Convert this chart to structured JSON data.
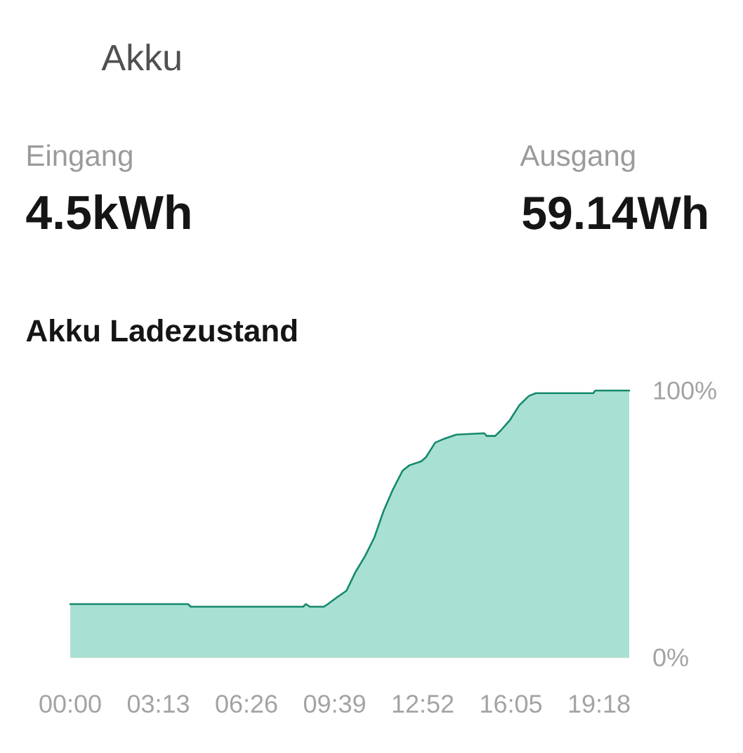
{
  "chart_data": {
    "type": "area",
    "title": "Akku Ladezustand",
    "annotations": [
      "Akku",
      "Eingang",
      "4.5kWh",
      "Ausgang",
      "59.14Wh"
    ],
    "x": [
      0,
      4.3,
      4.4,
      8.5,
      8.6,
      8.75,
      9.25,
      9.4,
      9.73,
      10.08,
      10.41,
      10.76,
      11.1,
      11.44,
      11.78,
      12.13,
      12.38,
      12.81,
      12.98,
      13.32,
      13.66,
      14.09,
      15.11,
      15.2,
      15.51,
      15.71,
      16.05,
      16.39,
      16.74,
      16.99,
      19.09,
      19.16,
      20.4
    ],
    "values": [
      20,
      20,
      19,
      19,
      20,
      19,
      19,
      20,
      22.5,
      25,
      32,
      38,
      45,
      55,
      63,
      70,
      72,
      73.5,
      75,
      80.5,
      82,
      83.5,
      84,
      83,
      83,
      85,
      89,
      94.5,
      98,
      99,
      99,
      100,
      100
    ],
    "color": "#15896d",
    "xlim": [
      0,
      20.4
    ],
    "ylim": [
      0,
      100
    ],
    "xticks": [
      {
        "value": 0,
        "label": "00:00"
      },
      {
        "value": 3.2167,
        "label": "03:13"
      },
      {
        "value": 6.4333,
        "label": "06:26"
      },
      {
        "value": 9.65,
        "label": "09:39"
      },
      {
        "value": 12.8667,
        "label": "12:52"
      },
      {
        "value": 16.0833,
        "label": "16:05"
      },
      {
        "value": 19.3,
        "label": "19:18"
      }
    ],
    "yticks": [
      {
        "value": 0,
        "label": "0%"
      },
      {
        "value": 100,
        "label": "100%"
      }
    ]
  }
}
